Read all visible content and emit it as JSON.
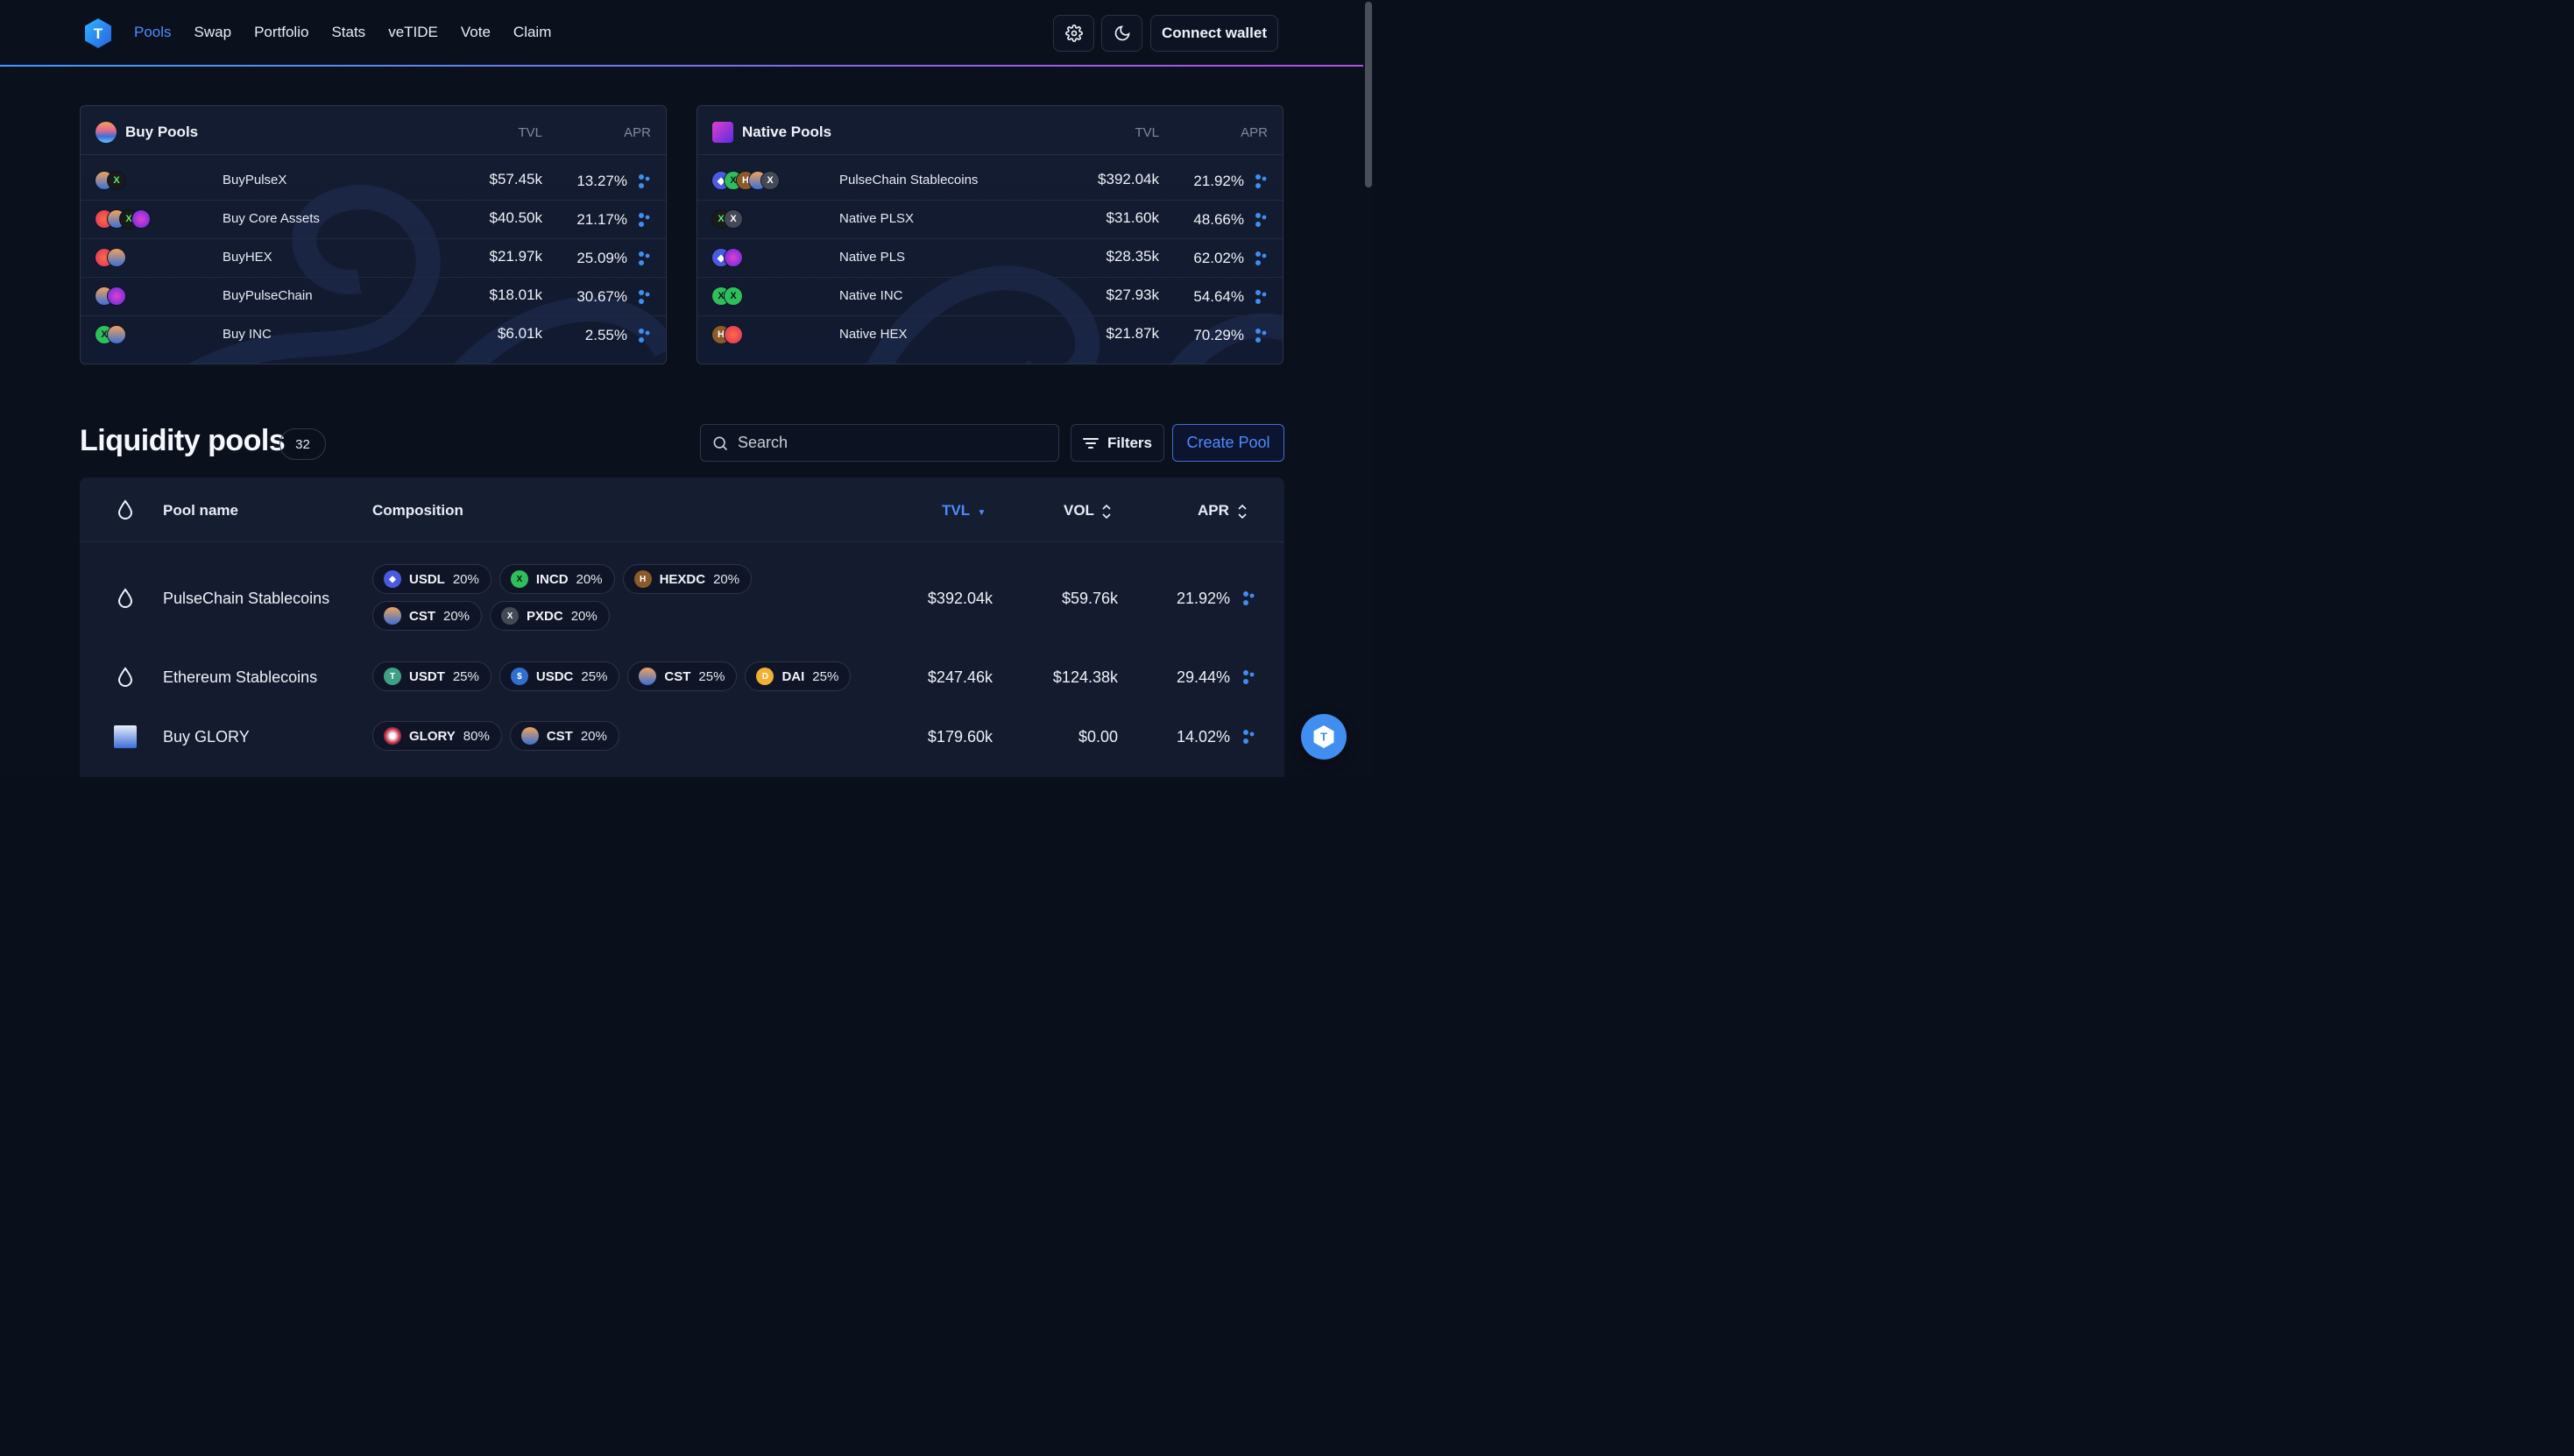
{
  "header": {
    "nav": [
      "Pools",
      "Swap",
      "Portfolio",
      "Stats",
      "veTIDE",
      "Vote",
      "Claim"
    ],
    "active_nav": "Pools",
    "settings_icon": "gear-icon",
    "theme_icon": "moon-icon",
    "connect_wallet": "Connect wallet"
  },
  "buy_pools": {
    "title": "Buy Pools",
    "col_tvl": "TVL",
    "col_apr": "APR",
    "rows": [
      {
        "name": "BuyPulseX",
        "tvl": "$57.45k",
        "apr": "13.27%"
      },
      {
        "name": "Buy Core Assets",
        "tvl": "$40.50k",
        "apr": "21.17%"
      },
      {
        "name": "BuyHEX",
        "tvl": "$21.97k",
        "apr": "25.09%"
      },
      {
        "name": "BuyPulseChain",
        "tvl": "$18.01k",
        "apr": "30.67%"
      },
      {
        "name": "Buy INC",
        "tvl": "$6.01k",
        "apr": "2.55%"
      }
    ]
  },
  "native_pools": {
    "title": "Native Pools",
    "col_tvl": "TVL",
    "col_apr": "APR",
    "rows": [
      {
        "name": "PulseChain Stablecoins",
        "tvl": "$392.04k",
        "apr": "21.92%"
      },
      {
        "name": "Native PLSX",
        "tvl": "$31.60k",
        "apr": "48.66%"
      },
      {
        "name": "Native PLS",
        "tvl": "$28.35k",
        "apr": "62.02%"
      },
      {
        "name": "Native INC",
        "tvl": "$27.93k",
        "apr": "54.64%"
      },
      {
        "name": "Native HEX",
        "tvl": "$21.87k",
        "apr": "70.29%"
      }
    ]
  },
  "liquidity": {
    "title": "Liquidity pools",
    "count": "32",
    "search_placeholder": "Search",
    "filters": "Filters",
    "create_pool": "Create Pool",
    "columns": {
      "name": "Pool name",
      "composition": "Composition",
      "tvl": "TVL",
      "vol": "VOL",
      "apr": "APR"
    },
    "rows": [
      {
        "name": "PulseChain Stablecoins",
        "tokens": [
          {
            "sym": "USDL",
            "pct": "20%",
            "color": "#4b5be0"
          },
          {
            "sym": "INCD",
            "pct": "20%",
            "color": "#2fbf5a"
          },
          {
            "sym": "HEXDC",
            "pct": "20%",
            "color": "#8a5a2a"
          },
          {
            "sym": "CST",
            "pct": "20%",
            "color": "#e8a04a"
          },
          {
            "sym": "PXDC",
            "pct": "20%",
            "color": "#444a55"
          }
        ],
        "tvl": "$392.04k",
        "vol": "$59.76k",
        "apr": "21.92%"
      },
      {
        "name": "Ethereum Stablecoins",
        "tokens": [
          {
            "sym": "USDT",
            "pct": "25%",
            "color": "#3fa087"
          },
          {
            "sym": "USDC",
            "pct": "25%",
            "color": "#2f6fd0"
          },
          {
            "sym": "CST",
            "pct": "25%",
            "color": "#e8a04a"
          },
          {
            "sym": "DAI",
            "pct": "25%",
            "color": "#f0b034"
          }
        ],
        "tvl": "$247.46k",
        "vol": "$124.38k",
        "apr": "29.44%"
      },
      {
        "name": "Buy GLORY",
        "tokens": [
          {
            "sym": "GLORY",
            "pct": "80%",
            "color": "#c0283a"
          },
          {
            "sym": "CST",
            "pct": "20%",
            "color": "#e8a04a"
          }
        ],
        "tvl": "$179.60k",
        "vol": "$0.00",
        "apr": "14.02%"
      }
    ]
  },
  "colors": {
    "accent": "#4d8bff",
    "background": "#0b101d",
    "apr_dots": "#3f8ef0"
  }
}
